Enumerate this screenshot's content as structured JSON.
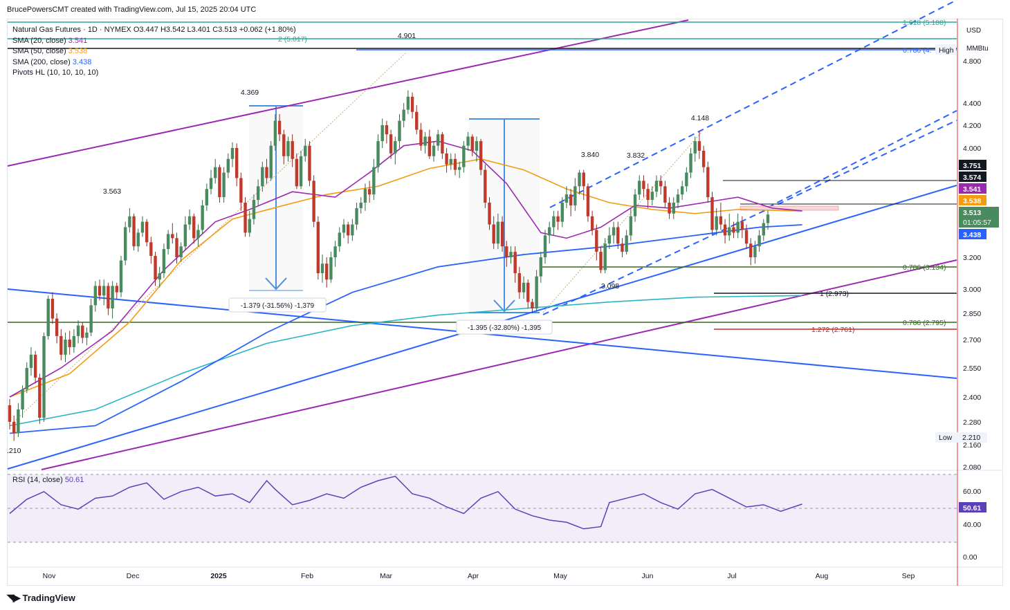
{
  "header": {
    "attribution": "BrucePowersCMT created with TradingView.com, Jul 15, 2025 20:04 UTC"
  },
  "legend": {
    "symbol_line": "Natural Gas Futures · 1D · NYMEX  O3.447  H3.542  L3.401  C3.513  +0.062 (+1.80%)",
    "sma20_label": "SMA (20, close)",
    "sma20_value": "3.541",
    "sma50_label": "SMA (50, close)",
    "sma50_value": "3.538",
    "sma200_label": "SMA (200, close)",
    "sma200_value": "3.438",
    "pivots_label": "Pivots HL (10, 10, 10, 10)"
  },
  "rsi": {
    "label": "RSI (14, close)",
    "value": "50.61"
  },
  "axis": {
    "currency": "USD",
    "unit": "MMBtu"
  },
  "footer": {
    "brand": "TradingView"
  },
  "colors": {
    "up": "#26a69a",
    "upBody": "#4a8a5f",
    "down": "#c0392b",
    "sma20": "#9c27b0",
    "sma50": "#f39c12",
    "sma200": "#2962ff",
    "sma_teal": "#26b5c4",
    "purple": "#9c27b0",
    "blue": "#2962ff",
    "green": "#33691e",
    "rsi": "#5b40b8"
  },
  "chart_data": {
    "type": "candlestick",
    "title": "Natural Gas Futures · 1D · NYMEX",
    "y_axis_ticks": [
      "4.800",
      "4.400",
      "4.200",
      "4.000",
      "3.200",
      "3.000",
      "2.850",
      "2.700",
      "2.550",
      "2.400",
      "2.280",
      "2.160",
      "2.080"
    ],
    "x_axis_ticks": [
      "Nov",
      "Dec",
      "2025",
      "Feb",
      "Mar",
      "Apr",
      "May",
      "Jun",
      "Jul",
      "Aug",
      "Sep"
    ],
    "rsi_ticks": [
      "60.00",
      "40.00",
      "0.00"
    ],
    "price_badges": [
      {
        "value": "3.751",
        "color": "#131722"
      },
      {
        "value": "3.574",
        "color": "#131722"
      },
      {
        "value": "3.541",
        "color": "#9c27b0"
      },
      {
        "value": "3.538",
        "color": "#f39c12"
      },
      {
        "value": "3.513",
        "sub": "01:05:57",
        "color": "#4a8a5f"
      },
      {
        "value": "3.438",
        "color": "#2962ff"
      }
    ],
    "rsi_badge": "50.61",
    "axis_tags": [
      {
        "label": "High",
        "value": ""
      },
      {
        "label": "Low",
        "value": "2.210"
      }
    ],
    "pivot_labels": [
      "4.369",
      "3.563",
      "4.901",
      "3.840",
      "3.832",
      "4.148",
      "3.098",
      ".210"
    ],
    "fib_labels": [
      "1.618 (5.188)",
      "2 (5.017)",
      "0.786 (4.",
      "0.786 (3.134)",
      "1 (2.973)",
      "0.786 (2.795)",
      "1.272 (2.761)"
    ],
    "measure_labels": [
      "-1.379 (-31.56%) -1,379",
      "-1.395 (-32.80%) -1,395"
    ],
    "last_close": 3.513,
    "candles": [
      [
        2.36,
        2.28,
        2.39,
        2.24
      ],
      [
        2.28,
        2.22,
        2.31,
        2.18
      ],
      [
        2.22,
        2.34,
        2.37,
        2.2
      ],
      [
        2.34,
        2.44,
        2.46,
        2.3
      ],
      [
        2.44,
        2.55,
        2.58,
        2.42
      ],
      [
        2.55,
        2.62,
        2.66,
        2.51
      ],
      [
        2.62,
        2.5,
        2.64,
        2.47
      ],
      [
        2.5,
        2.3,
        2.52,
        2.27
      ],
      [
        2.3,
        2.72,
        2.74,
        2.28
      ],
      [
        2.72,
        2.94,
        2.96,
        2.7
      ],
      [
        2.94,
        2.82,
        2.98,
        2.79
      ],
      [
        2.82,
        2.72,
        2.85,
        2.68
      ],
      [
        2.72,
        2.62,
        2.76,
        2.59
      ],
      [
        2.62,
        2.7,
        2.74,
        2.58
      ],
      [
        2.7,
        2.66,
        2.75,
        2.62
      ],
      [
        2.66,
        2.72,
        2.76,
        2.63
      ],
      [
        2.72,
        2.78,
        2.81,
        2.68
      ],
      [
        2.78,
        2.71,
        2.8,
        2.68
      ],
      [
        2.71,
        2.74,
        2.77,
        2.67
      ],
      [
        2.74,
        2.9,
        2.94,
        2.72
      ],
      [
        2.9,
        3.02,
        3.05,
        2.86
      ],
      [
        3.02,
        2.96,
        3.06,
        2.93
      ],
      [
        2.96,
        3.02,
        3.06,
        2.9
      ],
      [
        3.02,
        2.88,
        3.04,
        2.84
      ],
      [
        2.88,
        3.02,
        3.05,
        2.82
      ],
      [
        3.02,
        2.98,
        3.04,
        2.94
      ],
      [
        2.98,
        3.18,
        3.21,
        2.95
      ],
      [
        3.18,
        3.42,
        3.46,
        3.15
      ],
      [
        3.42,
        3.5,
        3.56,
        3.38
      ],
      [
        3.5,
        3.28,
        3.52,
        3.25
      ],
      [
        3.28,
        3.38,
        3.41,
        3.24
      ],
      [
        3.38,
        3.46,
        3.5,
        3.35
      ],
      [
        3.46,
        3.31,
        3.48,
        3.28
      ],
      [
        3.31,
        3.21,
        3.35,
        3.16
      ],
      [
        3.21,
        3.06,
        3.24,
        3.02
      ],
      [
        3.06,
        3.1,
        3.14,
        3.01
      ],
      [
        3.1,
        3.26,
        3.3,
        3.07
      ],
      [
        3.26,
        3.37,
        3.4,
        3.22
      ],
      [
        3.37,
        3.34,
        3.45,
        3.3
      ],
      [
        3.34,
        3.2,
        3.38,
        3.16
      ],
      [
        3.2,
        3.28,
        3.31,
        3.17
      ],
      [
        3.28,
        3.44,
        3.5,
        3.25
      ],
      [
        3.44,
        3.5,
        3.55,
        3.4
      ],
      [
        3.5,
        3.34,
        3.52,
        3.3
      ],
      [
        3.34,
        3.4,
        3.44,
        3.28
      ],
      [
        3.4,
        3.58,
        3.62,
        3.37
      ],
      [
        3.58,
        3.7,
        3.74,
        3.54
      ],
      [
        3.7,
        3.78,
        3.84,
        3.66
      ],
      [
        3.78,
        3.86,
        3.92,
        3.74
      ],
      [
        3.86,
        3.64,
        3.88,
        3.6
      ],
      [
        3.64,
        3.82,
        3.86,
        3.6
      ],
      [
        3.82,
        3.92,
        3.96,
        3.78
      ],
      [
        3.92,
        4.0,
        4.05,
        3.86
      ],
      [
        4.0,
        3.78,
        4.04,
        3.72
      ],
      [
        3.78,
        3.6,
        3.82,
        3.54
      ],
      [
        3.6,
        3.38,
        3.64,
        3.35
      ],
      [
        3.38,
        3.48,
        3.54,
        3.35
      ],
      [
        3.48,
        3.62,
        3.66,
        3.44
      ],
      [
        3.62,
        3.72,
        3.77,
        3.58
      ],
      [
        3.72,
        3.86,
        3.9,
        3.68
      ],
      [
        3.86,
        3.78,
        3.92,
        3.74
      ],
      [
        3.78,
        4.02,
        4.06,
        3.76
      ],
      [
        4.02,
        4.24,
        4.3,
        3.98
      ],
      [
        4.24,
        4.12,
        4.3,
        4.06
      ],
      [
        4.12,
        3.94,
        4.16,
        3.88
      ],
      [
        3.94,
        4.06,
        4.1,
        3.9
      ],
      [
        4.06,
        3.92,
        4.12,
        3.86
      ],
      [
        3.92,
        3.72,
        3.96,
        3.7
      ],
      [
        3.72,
        3.94,
        3.98,
        3.7
      ],
      [
        3.94,
        4.02,
        4.08,
        3.9
      ],
      [
        4.02,
        3.76,
        4.06,
        3.72
      ],
      [
        3.76,
        3.46,
        3.8,
        3.42
      ],
      [
        3.46,
        3.1,
        3.5,
        3.06
      ],
      [
        3.1,
        3.16,
        3.22,
        3.04
      ],
      [
        3.16,
        3.06,
        3.2,
        3.01
      ],
      [
        3.06,
        3.2,
        3.24,
        3.04
      ],
      [
        3.2,
        3.28,
        3.32,
        3.14
      ],
      [
        3.28,
        3.38,
        3.42,
        3.24
      ],
      [
        3.38,
        3.44,
        3.48,
        3.34
      ],
      [
        3.44,
        3.36,
        3.46,
        3.3
      ],
      [
        3.36,
        3.44,
        3.48,
        3.32
      ],
      [
        3.44,
        3.56,
        3.6,
        3.4
      ],
      [
        3.56,
        3.6,
        3.64,
        3.52
      ],
      [
        3.6,
        3.7,
        3.74,
        3.54
      ],
      [
        3.7,
        3.66,
        3.76,
        3.6
      ],
      [
        3.66,
        3.86,
        3.92,
        3.62
      ],
      [
        3.86,
        4.06,
        4.12,
        3.82
      ],
      [
        4.06,
        4.2,
        4.26,
        4.0
      ],
      [
        4.2,
        4.12,
        4.24,
        4.04
      ],
      [
        4.12,
        3.96,
        4.16,
        3.92
      ],
      [
        3.96,
        4.06,
        4.1,
        3.88
      ],
      [
        4.06,
        4.24,
        4.3,
        4.0
      ],
      [
        4.24,
        4.34,
        4.4,
        4.18
      ],
      [
        4.34,
        4.46,
        4.52,
        4.3
      ],
      [
        4.46,
        4.32,
        4.5,
        4.26
      ],
      [
        4.32,
        4.16,
        4.38,
        4.12
      ],
      [
        4.16,
        4.02,
        4.22,
        3.98
      ],
      [
        4.02,
        4.1,
        4.14,
        3.96
      ],
      [
        4.1,
        3.94,
        4.16,
        3.92
      ],
      [
        3.94,
        4.02,
        4.06,
        3.9
      ],
      [
        4.02,
        4.12,
        4.16,
        3.98
      ],
      [
        4.12,
        3.96,
        4.14,
        3.92
      ],
      [
        3.96,
        3.88,
        4.0,
        3.82
      ],
      [
        3.88,
        3.92,
        3.96,
        3.84
      ],
      [
        3.92,
        3.84,
        3.96,
        3.8
      ],
      [
        3.84,
        3.86,
        3.9,
        3.78
      ],
      [
        3.86,
        4.02,
        4.06,
        3.82
      ],
      [
        4.02,
        4.1,
        4.14,
        3.98
      ],
      [
        4.1,
        3.98,
        4.12,
        3.94
      ],
      [
        3.98,
        4.06,
        4.1,
        3.9
      ],
      [
        4.06,
        3.84,
        4.08,
        3.8
      ],
      [
        3.84,
        3.6,
        3.88,
        3.56
      ],
      [
        3.6,
        3.44,
        3.64,
        3.4
      ],
      [
        3.44,
        3.3,
        3.5,
        3.26
      ],
      [
        3.3,
        3.46,
        3.52,
        3.26
      ],
      [
        3.46,
        3.28,
        3.5,
        3.24
      ],
      [
        3.28,
        3.2,
        3.32,
        3.14
      ],
      [
        3.2,
        3.24,
        3.28,
        3.16
      ],
      [
        3.24,
        3.1,
        3.28,
        3.04
      ],
      [
        3.1,
        2.98,
        3.14,
        2.94
      ],
      [
        2.98,
        3.04,
        3.08,
        2.94
      ],
      [
        3.04,
        2.92,
        3.06,
        2.88
      ],
      [
        2.92,
        2.88,
        2.94,
        2.85
      ],
      [
        2.88,
        3.08,
        3.12,
        2.86
      ],
      [
        3.08,
        3.2,
        3.24,
        3.04
      ],
      [
        3.2,
        3.36,
        3.4,
        3.16
      ],
      [
        3.36,
        3.42,
        3.46,
        3.3
      ],
      [
        3.42,
        3.5,
        3.54,
        3.36
      ],
      [
        3.5,
        3.46,
        3.54,
        3.4
      ],
      [
        3.46,
        3.6,
        3.64,
        3.42
      ],
      [
        3.6,
        3.66,
        3.72,
        3.56
      ],
      [
        3.66,
        3.58,
        3.7,
        3.5
      ],
      [
        3.58,
        3.72,
        3.78,
        3.54
      ],
      [
        3.72,
        3.82,
        3.84,
        3.66
      ],
      [
        3.82,
        3.72,
        3.84,
        3.62
      ],
      [
        3.72,
        3.5,
        3.74,
        3.46
      ],
      [
        3.5,
        3.4,
        3.54,
        3.36
      ],
      [
        3.4,
        3.24,
        3.44,
        3.18
      ],
      [
        3.24,
        3.12,
        3.28,
        3.1
      ],
      [
        3.12,
        3.3,
        3.34,
        3.1
      ],
      [
        3.3,
        3.36,
        3.42,
        3.26
      ],
      [
        3.36,
        3.42,
        3.46,
        3.3
      ],
      [
        3.42,
        3.3,
        3.46,
        3.26
      ],
      [
        3.3,
        3.24,
        3.34,
        3.2
      ],
      [
        3.24,
        3.36,
        3.4,
        3.22
      ],
      [
        3.36,
        3.5,
        3.56,
        3.32
      ],
      [
        3.5,
        3.66,
        3.7,
        3.46
      ],
      [
        3.66,
        3.76,
        3.8,
        3.62
      ],
      [
        3.76,
        3.7,
        3.8,
        3.64
      ],
      [
        3.7,
        3.62,
        3.74,
        3.56
      ],
      [
        3.62,
        3.68,
        3.72,
        3.58
      ],
      [
        3.68,
        3.76,
        3.8,
        3.64
      ],
      [
        3.76,
        3.72,
        3.8,
        3.66
      ],
      [
        3.72,
        3.6,
        3.76,
        3.56
      ],
      [
        3.6,
        3.52,
        3.64,
        3.48
      ],
      [
        3.52,
        3.6,
        3.64,
        3.48
      ],
      [
        3.6,
        3.66,
        3.7,
        3.56
      ],
      [
        3.66,
        3.72,
        3.76,
        3.62
      ],
      [
        3.72,
        3.82,
        3.86,
        3.68
      ],
      [
        3.82,
        3.96,
        4.0,
        3.78
      ],
      [
        3.96,
        4.06,
        4.1,
        3.9
      ],
      [
        4.06,
        3.98,
        4.148,
        3.92
      ],
      [
        3.98,
        3.86,
        4.02,
        3.82
      ],
      [
        3.86,
        3.64,
        3.9,
        3.6
      ],
      [
        3.64,
        3.4,
        3.68,
        3.36
      ],
      [
        3.4,
        3.5,
        3.56,
        3.36
      ],
      [
        3.5,
        3.44,
        3.6,
        3.4
      ],
      [
        3.44,
        3.36,
        3.48,
        3.3
      ],
      [
        3.36,
        3.42,
        3.52,
        3.32
      ],
      [
        3.42,
        3.38,
        3.46,
        3.34
      ],
      [
        3.38,
        3.46,
        3.52,
        3.34
      ],
      [
        3.46,
        3.4,
        3.5,
        3.34
      ],
      [
        3.4,
        3.3,
        3.44,
        3.26
      ],
      [
        3.3,
        3.2,
        3.34,
        3.15
      ],
      [
        3.2,
        3.28,
        3.32,
        3.16
      ],
      [
        3.28,
        3.36,
        3.4,
        3.24
      ],
      [
        3.36,
        3.45,
        3.48,
        3.32
      ],
      [
        3.45,
        3.513,
        3.542,
        3.401
      ]
    ],
    "sma20": [
      [
        0,
        2.4
      ],
      [
        12,
        2.55
      ],
      [
        24,
        2.75
      ],
      [
        36,
        3.12
      ],
      [
        48,
        3.46
      ],
      [
        56,
        3.55
      ],
      [
        66,
        3.68
      ],
      [
        76,
        3.64
      ],
      [
        84,
        3.82
      ],
      [
        92,
        4.02
      ],
      [
        100,
        4.06
      ],
      [
        108,
        3.98
      ],
      [
        116,
        3.74
      ],
      [
        124,
        3.38
      ],
      [
        130,
        3.34
      ],
      [
        138,
        3.42
      ],
      [
        146,
        3.58
      ],
      [
        154,
        3.56
      ],
      [
        162,
        3.6
      ],
      [
        170,
        3.64
      ],
      [
        178,
        3.56
      ],
      [
        185,
        3.54
      ]
    ],
    "sma50": [
      [
        0,
        2.4
      ],
      [
        14,
        2.52
      ],
      [
        28,
        2.8
      ],
      [
        40,
        3.18
      ],
      [
        52,
        3.48
      ],
      [
        64,
        3.58
      ],
      [
        74,
        3.66
      ],
      [
        86,
        3.72
      ],
      [
        98,
        3.85
      ],
      [
        110,
        3.92
      ],
      [
        120,
        3.84
      ],
      [
        130,
        3.7
      ],
      [
        140,
        3.6
      ],
      [
        150,
        3.55
      ],
      [
        160,
        3.52
      ],
      [
        170,
        3.55
      ],
      [
        185,
        3.538
      ]
    ],
    "sma200": [
      [
        0,
        2.22
      ],
      [
        20,
        2.26
      ],
      [
        40,
        2.48
      ],
      [
        60,
        2.74
      ],
      [
        80,
        2.98
      ],
      [
        100,
        3.14
      ],
      [
        120,
        3.22
      ],
      [
        140,
        3.28
      ],
      [
        160,
        3.36
      ],
      [
        175,
        3.42
      ],
      [
        185,
        3.438
      ]
    ],
    "sma_teal": [
      [
        0,
        2.26
      ],
      [
        20,
        2.34
      ],
      [
        40,
        2.52
      ],
      [
        60,
        2.68
      ],
      [
        80,
        2.78
      ],
      [
        100,
        2.84
      ],
      [
        120,
        2.88
      ],
      [
        140,
        2.92
      ],
      [
        160,
        2.95
      ],
      [
        185,
        2.96
      ]
    ],
    "rsi_values": [
      [
        0,
        42
      ],
      [
        4,
        55
      ],
      [
        8,
        62
      ],
      [
        12,
        50
      ],
      [
        16,
        46
      ],
      [
        20,
        56
      ],
      [
        24,
        58
      ],
      [
        28,
        66
      ],
      [
        32,
        70
      ],
      [
        36,
        55
      ],
      [
        40,
        62
      ],
      [
        44,
        66
      ],
      [
        48,
        58
      ],
      [
        52,
        60
      ],
      [
        56,
        52
      ],
      [
        60,
        72
      ],
      [
        62,
        64
      ],
      [
        66,
        50
      ],
      [
        70,
        54
      ],
      [
        74,
        60
      ],
      [
        78,
        56
      ],
      [
        82,
        66
      ],
      [
        86,
        72
      ],
      [
        90,
        76
      ],
      [
        94,
        60
      ],
      [
        98,
        56
      ],
      [
        102,
        48
      ],
      [
        106,
        42
      ],
      [
        110,
        56
      ],
      [
        114,
        62
      ],
      [
        118,
        46
      ],
      [
        122,
        40
      ],
      [
        126,
        36
      ],
      [
        130,
        34
      ],
      [
        134,
        28
      ],
      [
        138,
        30
      ],
      [
        140,
        52
      ],
      [
        144,
        56
      ],
      [
        148,
        60
      ],
      [
        152,
        52
      ],
      [
        156,
        46
      ],
      [
        160,
        60
      ],
      [
        164,
        64
      ],
      [
        168,
        56
      ],
      [
        172,
        48
      ],
      [
        176,
        50
      ],
      [
        180,
        44
      ],
      [
        183,
        48
      ],
      [
        185,
        50.61
      ]
    ]
  }
}
